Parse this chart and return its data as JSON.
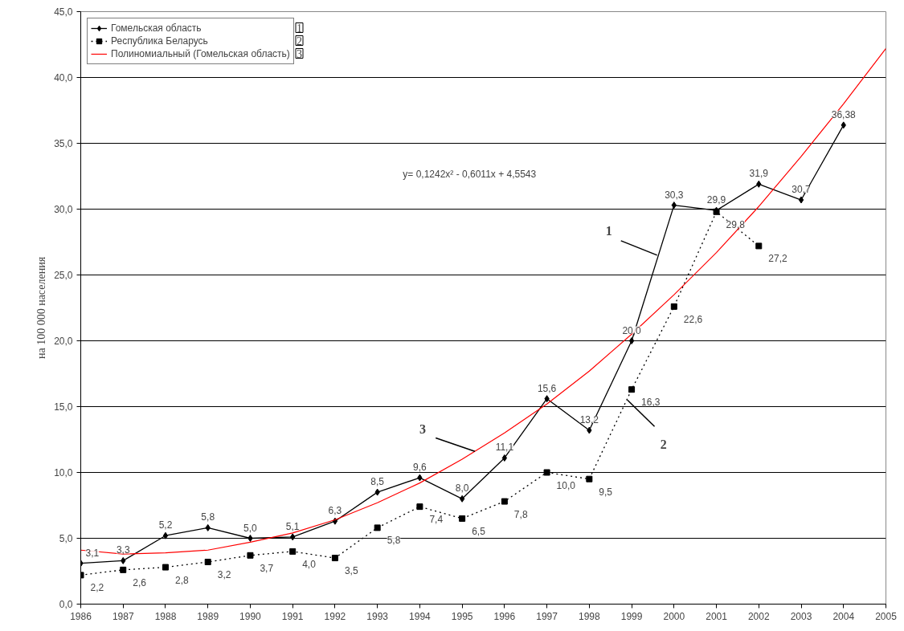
{
  "chart_data": {
    "type": "line",
    "ylabel": "на 100 000 населения",
    "xlim": [
      1986,
      2005
    ],
    "xticks": [
      1986,
      1987,
      1988,
      1989,
      1990,
      1991,
      1992,
      1993,
      1994,
      1995,
      1996,
      1997,
      1998,
      1999,
      2000,
      2001,
      2002,
      2003,
      2004,
      2005
    ],
    "ylim": [
      0,
      45
    ],
    "yticks": [
      {
        "value": 0,
        "label": "0,0"
      },
      {
        "value": 5,
        "label": "5,0"
      },
      {
        "value": 10,
        "label": "10,0"
      },
      {
        "value": 15,
        "label": "15,0"
      },
      {
        "value": 20,
        "label": "20,0"
      },
      {
        "value": 25,
        "label": "25,0"
      },
      {
        "value": 30,
        "label": "30,0"
      },
      {
        "value": 35,
        "label": "35,0"
      },
      {
        "value": 40,
        "label": "40,0"
      },
      {
        "value": 45,
        "label": "45,0"
      }
    ],
    "grid": "y",
    "legend": "top left",
    "series": [
      {
        "name": "Гомельская область",
        "color": "#000000",
        "marker": "diamond",
        "line_style": "solid",
        "x": [
          1986,
          1987,
          1988,
          1989,
          1990,
          1991,
          1992,
          1993,
          1994,
          1995,
          1996,
          1997,
          1998,
          1999,
          2000,
          2001,
          2002,
          2003,
          2004
        ],
        "values": [
          3.1,
          3.3,
          5.2,
          5.8,
          5.0,
          5.1,
          6.3,
          8.5,
          9.6,
          8.0,
          11.1,
          15.6,
          13.2,
          20.0,
          30.3,
          29.9,
          31.9,
          30.7,
          36.38
        ],
        "value_labels": [
          "3,1",
          "3,3",
          "5,2",
          "5,8",
          "5,0",
          "5,1",
          "6,3",
          "8,5",
          "9,6",
          "8,0",
          "11,1",
          "15,6",
          "13,2",
          "20,0",
          "30,3",
          "29,9",
          "31,9",
          "30,7",
          "36,38"
        ]
      },
      {
        "name": "Республика Беларусь",
        "color": "#000000",
        "marker": "square",
        "line_style": "dotted",
        "x": [
          1986,
          1987,
          1988,
          1989,
          1990,
          1991,
          1992,
          1993,
          1994,
          1995,
          1996,
          1997,
          1998,
          1999,
          2000,
          2001,
          2002
        ],
        "values": [
          2.2,
          2.6,
          2.8,
          3.2,
          3.7,
          4.0,
          3.5,
          5.8,
          7.4,
          6.5,
          7.8,
          10.0,
          9.5,
          16.3,
          22.6,
          29.8,
          27.2
        ],
        "value_labels": [
          "2,2",
          "2,6",
          "2,8",
          "3,2",
          "3,7",
          "4,0",
          "3,5",
          "5,8",
          "7,4",
          "6,5",
          "7,8",
          "10,0",
          "9,5",
          "16,3",
          "22,6",
          "29,8",
          "27,2"
        ]
      },
      {
        "name": "Полиномиальный (Гомельская область)",
        "color": "#ff0000",
        "marker": "none",
        "line_style": "solid",
        "x": [
          1986,
          1987,
          1988,
          1989,
          1990,
          1991,
          1992,
          1993,
          1994,
          1995,
          1996,
          1997,
          1998,
          1999,
          2000,
          2001,
          2002,
          2003,
          2004,
          2005
        ],
        "values": [
          4.1,
          3.8,
          3.9,
          4.1,
          4.7,
          5.4,
          6.4,
          7.7,
          9.2,
          11.0,
          13.0,
          15.2,
          17.7,
          20.5,
          23.5,
          26.7,
          30.2,
          34.0,
          38.0,
          42.2
        ]
      }
    ],
    "annotations": [
      {
        "text": "1",
        "x": 1999.6,
        "y": 26.5
      },
      {
        "text": "2",
        "x": 1998.9,
        "y": 15.5
      },
      {
        "text": "3",
        "x": 1995.3,
        "y": 11.6
      },
      "y= 0,1242x² - 0,6011x + 4,5543"
    ]
  }
}
